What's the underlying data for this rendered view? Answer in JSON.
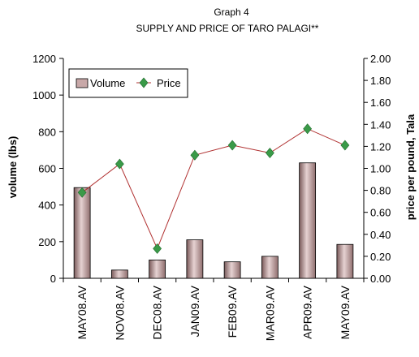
{
  "chart_data": {
    "type": "bar+line",
    "title": "Graph 4",
    "subtitle": "SUPPLY AND PRICE OF TARO PALAGI**",
    "categories": [
      "MAY08.AV",
      "NOV08.AV",
      "DEC08.AV",
      "JAN09.AV",
      "FEB09.AV",
      "MAR09.AV",
      "APR09.AV",
      "MAY09.AV"
    ],
    "series": [
      {
        "name": "Volume",
        "type": "bar",
        "axis": "left",
        "values": [
          495,
          45,
          100,
          210,
          90,
          120,
          630,
          185
        ],
        "color": "#c8a8a8"
      },
      {
        "name": "Price",
        "type": "line",
        "axis": "right",
        "values": [
          0.78,
          1.04,
          0.27,
          1.12,
          1.21,
          1.14,
          1.36,
          1.21
        ],
        "color": "#b03030",
        "marker_color": "#3a9a48"
      }
    ],
    "ylabel": "volume (lbs)",
    "ylabel_right": "price per pound, Tala",
    "ylim": [
      0,
      1200
    ],
    "ylim_right": [
      0,
      2.0
    ],
    "yticks": [
      "0",
      "200",
      "400",
      "600",
      "800",
      "1000",
      "1200"
    ],
    "yticks_right": [
      "0.00",
      "0.20",
      "0.40",
      "0.60",
      "0.80",
      "1.00",
      "1.20",
      "1.40",
      "1.60",
      "1.80",
      "2.00"
    ],
    "grid": false,
    "legend_position": "top-left"
  }
}
